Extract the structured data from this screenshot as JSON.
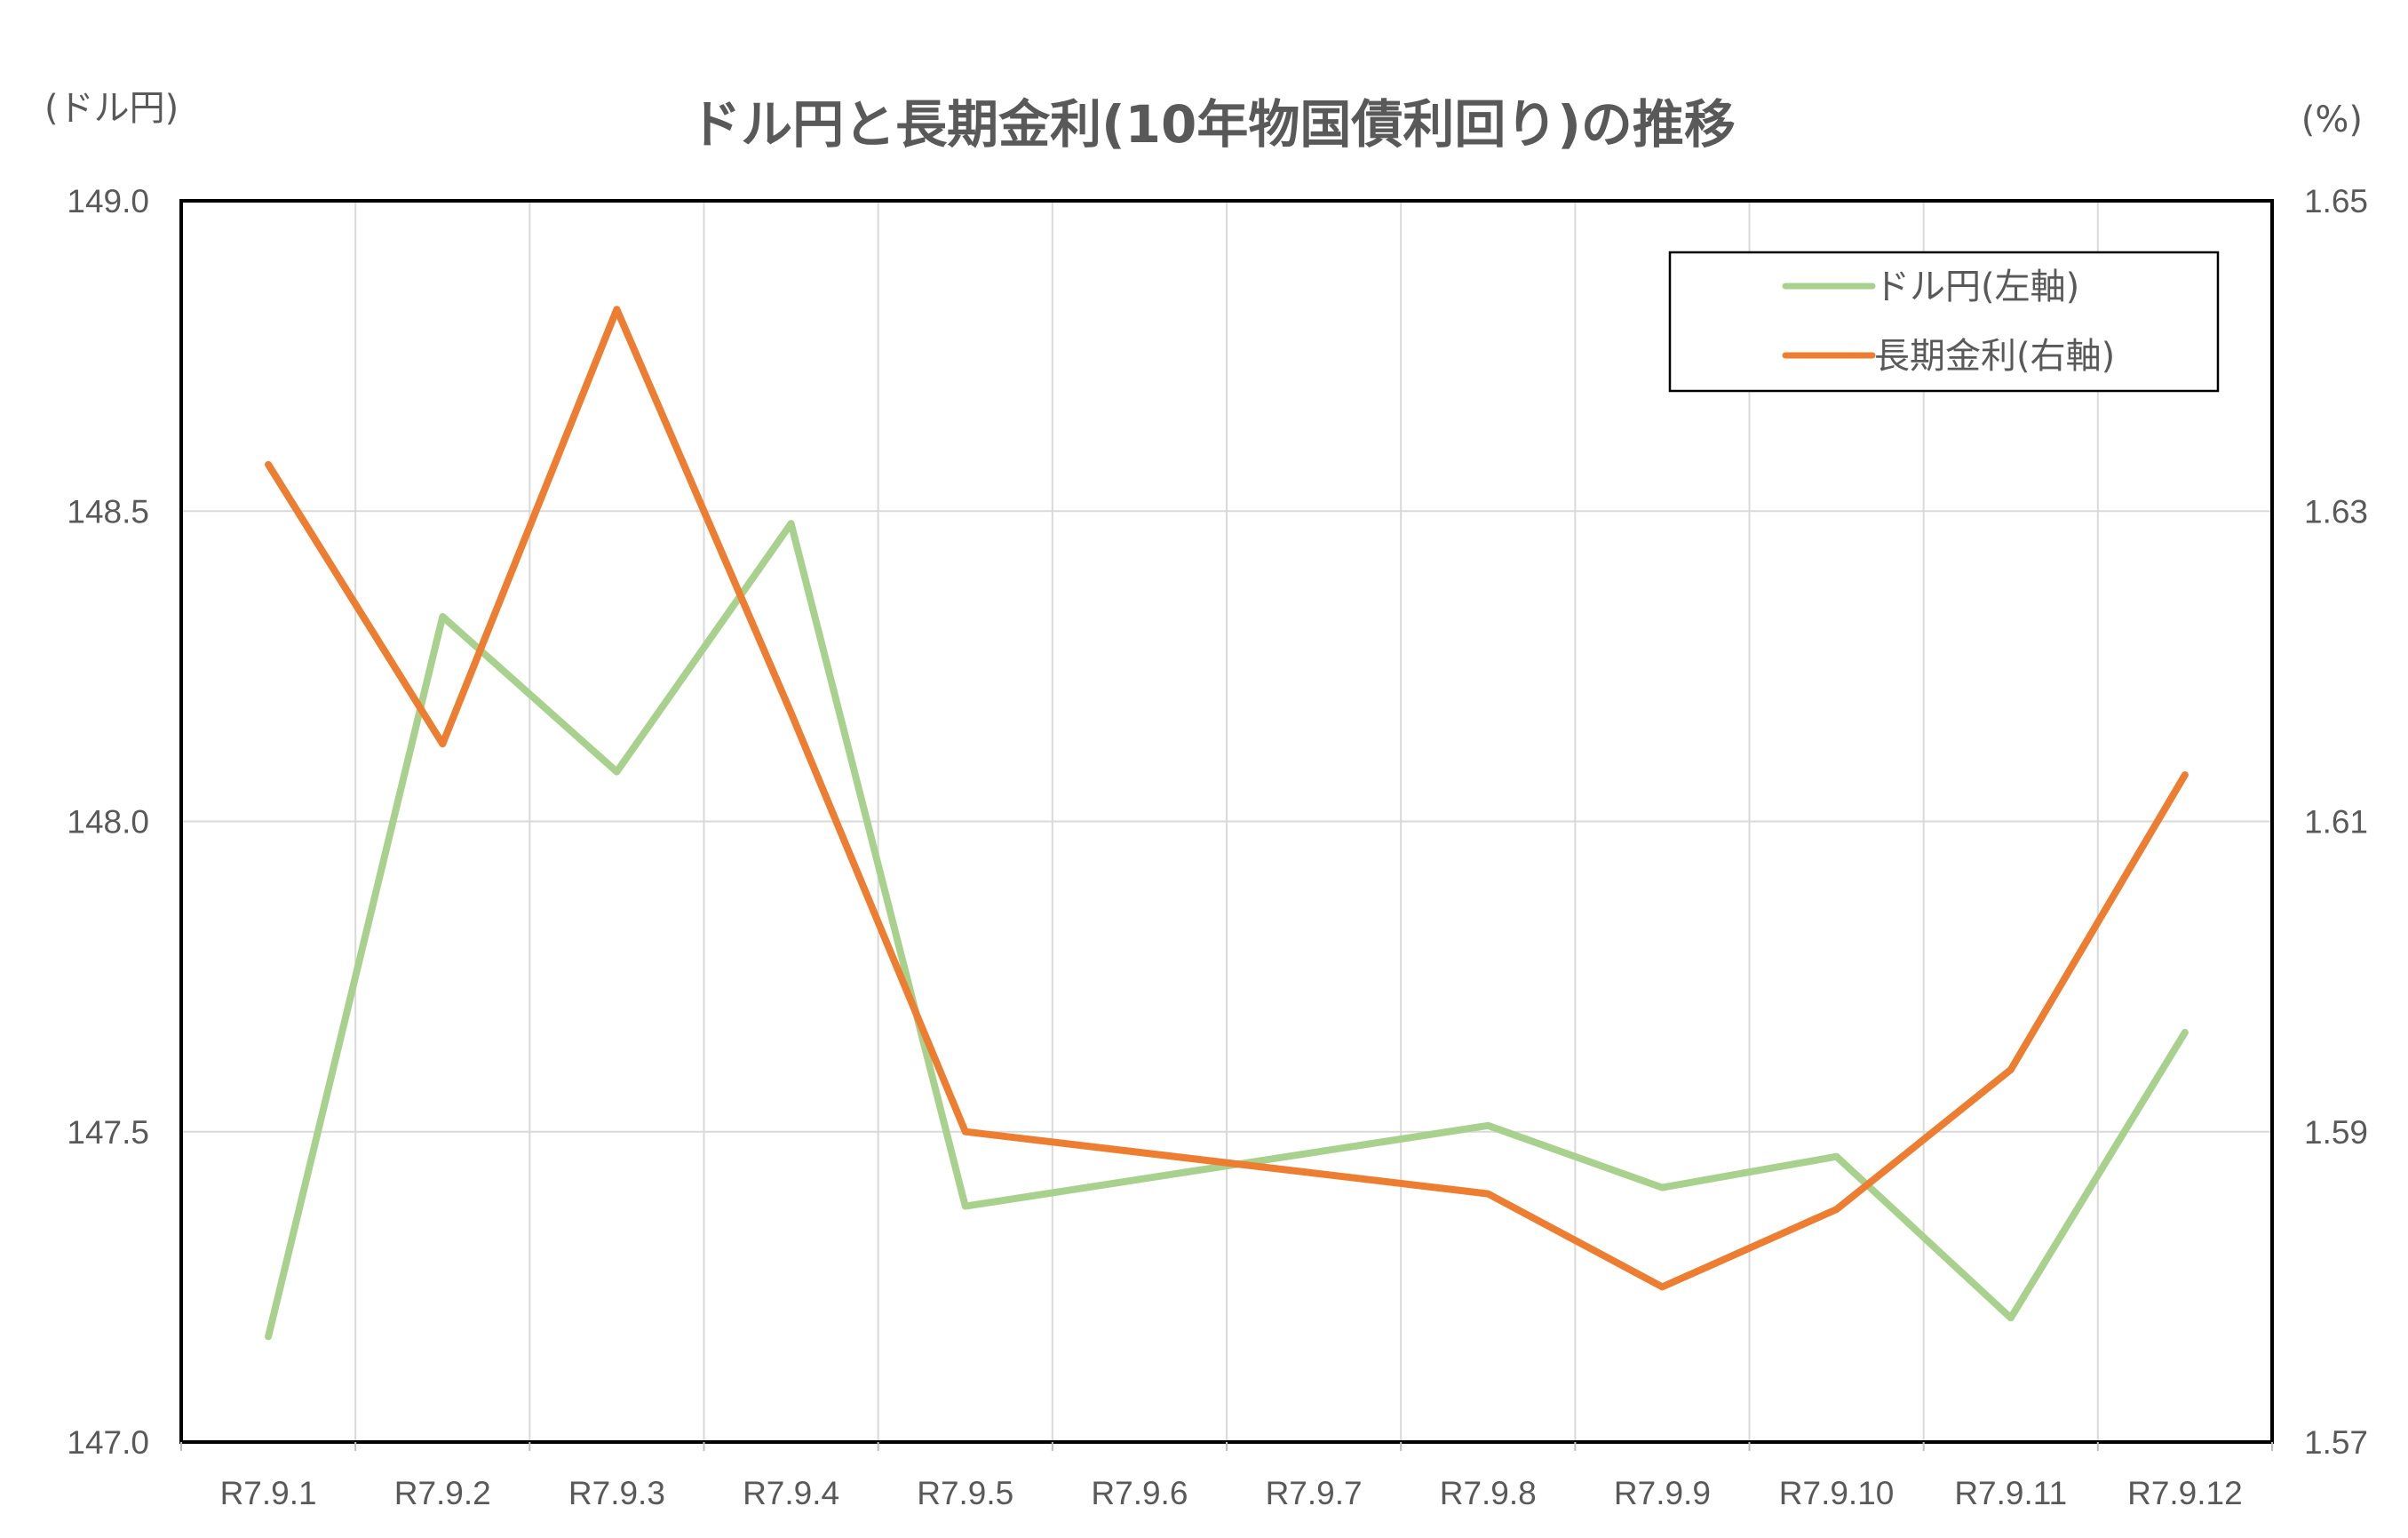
{
  "chart_data": {
    "type": "line",
    "title": "ドル円と長期金利(10年物国債利回り)の推移",
    "y_left_unit": "(ドル円)",
    "y_right_unit": "(%)",
    "categories": [
      "R7.9.1",
      "R7.9.2",
      "R7.9.3",
      "R7.9.4",
      "R7.9.5",
      "R7.9.6",
      "R7.9.7",
      "R7.9.8",
      "R7.9.9",
      "R7.9.10",
      "R7.9.11",
      "R7.9.12"
    ],
    "y_left": {
      "min": 147.0,
      "max": 149.0,
      "ticks": [
        "147.0",
        "147.5",
        "148.0",
        "148.5",
        "149.0"
      ]
    },
    "y_right": {
      "min": 1.57,
      "max": 1.65,
      "ticks": [
        "1.57",
        "1.59",
        "1.61",
        "1.63",
        "1.65"
      ]
    },
    "series": [
      {
        "name": "ドル円(左軸)",
        "axis": "left",
        "color": "#A9D18E",
        "points": [
          {
            "x": "R7.9.1",
            "y": 147.17
          },
          {
            "x": "R7.9.2",
            "y": 148.33
          },
          {
            "x": "R7.9.3",
            "y": 148.08
          },
          {
            "x": "R7.9.4",
            "y": 148.48
          },
          {
            "x": "R7.9.5",
            "y": 147.38
          },
          {
            "x": "R7.9.8",
            "y": 147.51
          },
          {
            "x": "R7.9.9",
            "y": 147.41
          },
          {
            "x": "R7.9.10",
            "y": 147.46
          },
          {
            "x": "R7.9.11",
            "y": 147.2
          },
          {
            "x": "R7.9.12",
            "y": 147.66
          }
        ]
      },
      {
        "name": "長期金利(右軸)",
        "axis": "right",
        "color": "#ED7D31",
        "points": [
          {
            "x": "R7.9.1",
            "y": 1.633
          },
          {
            "x": "R7.9.2",
            "y": 1.615
          },
          {
            "x": "R7.9.3",
            "y": 1.643
          },
          {
            "x": "R7.9.4",
            "y": 1.617
          },
          {
            "x": "R7.9.5",
            "y": 1.59
          },
          {
            "x": "R7.9.8",
            "y": 1.586
          },
          {
            "x": "R7.9.9",
            "y": 1.58
          },
          {
            "x": "R7.9.10",
            "y": 1.585
          },
          {
            "x": "R7.9.11",
            "y": 1.594
          },
          {
            "x": "R7.9.12",
            "y": 1.613
          }
        ]
      }
    ],
    "grid": true,
    "legend_position": "top-right"
  }
}
